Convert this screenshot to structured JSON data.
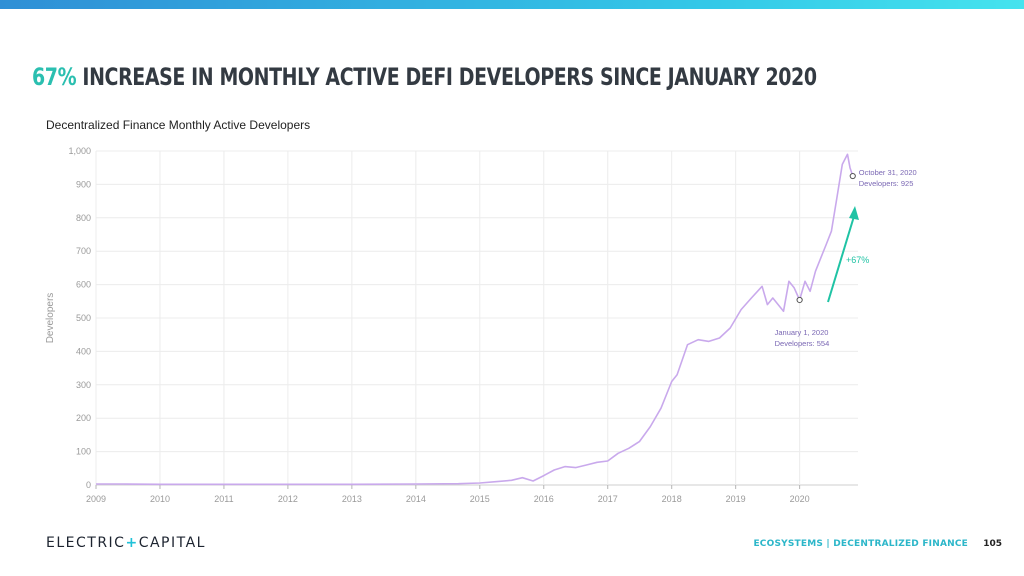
{
  "slide": {
    "headline_accent": "67%",
    "headline_rest": "Increase in monthly active DeFi developers since January 2020",
    "brand_left": "ELECTRIC",
    "brand_plus": "+",
    "brand_right": "CAPITAL",
    "section_label": "Ecosystems | Decentralized Finance",
    "page_number": "105",
    "colors": {
      "top_bar": "#34c9e8",
      "accent": "#2bbfb0",
      "line": "#c9a9ec",
      "annotation_text": "#7b68b4",
      "arrow": "#1fc3a4"
    }
  },
  "chart_data": {
    "type": "line",
    "title": "Decentralized Finance Monthly Active Developers",
    "xlabel": "",
    "ylabel": "Developers",
    "xlim": [
      "2009-01-01",
      "2020-11-30"
    ],
    "ylim": [
      0,
      1000
    ],
    "grid": true,
    "x_ticks": [
      "2009",
      "2010",
      "2011",
      "2012",
      "2013",
      "2014",
      "2015",
      "2016",
      "2017",
      "2018",
      "2019",
      "2020"
    ],
    "y_ticks": [
      "0",
      "100",
      "200",
      "300",
      "400",
      "500",
      "600",
      "700",
      "800",
      "900",
      "1,000"
    ],
    "series": [
      {
        "x": [
          "2009-01-01",
          "2009-06-01",
          "2010-01-01",
          "2011-01-01",
          "2012-01-01",
          "2013-01-01",
          "2014-01-01",
          "2014-09-01",
          "2015-01-01",
          "2015-04-01",
          "2015-07-01",
          "2015-09-01",
          "2015-11-01",
          "2016-01-01",
          "2016-03-01",
          "2016-05-01",
          "2016-07-01",
          "2016-09-01",
          "2016-11-01",
          "2017-01-01",
          "2017-03-01",
          "2017-05-01",
          "2017-07-01",
          "2017-09-01",
          "2017-11-01",
          "2018-01-01",
          "2018-02-01",
          "2018-04-01",
          "2018-06-01",
          "2018-08-01",
          "2018-10-01",
          "2018-12-01",
          "2019-02-01",
          "2019-04-01",
          "2019-06-01",
          "2019-07-01",
          "2019-08-01",
          "2019-10-01",
          "2019-11-01",
          "2019-12-01",
          "2020-01-01",
          "2020-02-01",
          "2020-03-01",
          "2020-04-01",
          "2020-05-01",
          "2020-06-01",
          "2020-07-01",
          "2020-08-01",
          "2020-09-01",
          "2020-10-01",
          "2020-10-15",
          "2020-10-31"
        ],
        "values": [
          3,
          3,
          2,
          2,
          2,
          2,
          3,
          4,
          6,
          10,
          14,
          22,
          12,
          28,
          45,
          55,
          52,
          60,
          68,
          72,
          95,
          110,
          130,
          175,
          230,
          310,
          330,
          420,
          435,
          430,
          440,
          470,
          525,
          560,
          595,
          540,
          560,
          520,
          610,
          590,
          554,
          610,
          580,
          640,
          680,
          720,
          760,
          860,
          960,
          990,
          950,
          925
        ]
      }
    ],
    "annotations": [
      {
        "x": "2020-01-01",
        "y": 554,
        "date_label": "January 1, 2020",
        "value_label": "Developers: 554"
      },
      {
        "x": "2020-10-31",
        "y": 925,
        "date_label": "October 31, 2020",
        "value_label": "Developers: 925"
      },
      {
        "label": "+67%"
      }
    ]
  }
}
